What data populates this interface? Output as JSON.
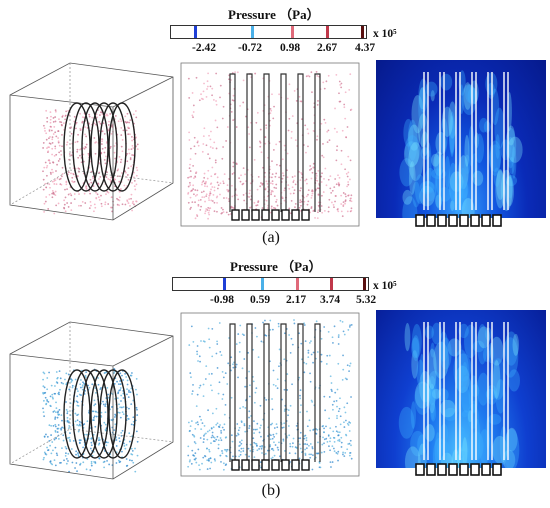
{
  "panels": [
    {
      "label": "(a)",
      "colorbar": {
        "title": "Pressure （Pa）",
        "ticks": [
          "-2.42",
          "-0.72",
          "0.98",
          "2.67",
          "4.37"
        ],
        "multiplier": "x 10⁵",
        "tick_colors": [
          "#1f3fd6",
          "#4ab0e8",
          "#e06a7a",
          "#c0384a",
          "#5a1010"
        ]
      },
      "particle_colors": [
        "#f2a7bd",
        "#d07a96"
      ]
    },
    {
      "label": "(b)",
      "colorbar": {
        "title": "Pressure （Pa）",
        "ticks": [
          "-0.98",
          "0.59",
          "2.17",
          "3.74",
          "5.32"
        ],
        "multiplier": "x 10⁵",
        "tick_colors": [
          "#1f3fd6",
          "#4ab0e8",
          "#e06a7a",
          "#c0384a",
          "#5a1010"
        ]
      },
      "particle_colors": [
        "#5fb6e0",
        "#3a8fd0"
      ]
    }
  ]
}
